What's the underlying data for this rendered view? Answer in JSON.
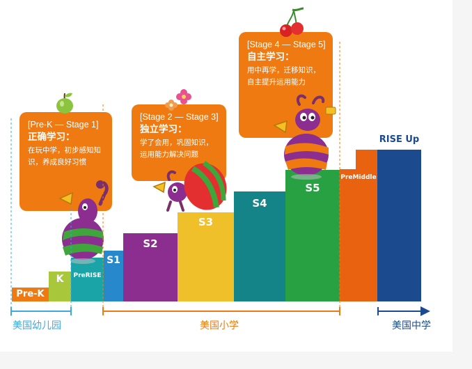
{
  "steps": [
    {
      "label": "Pre-K",
      "color": "#ef7a11"
    },
    {
      "label": "K",
      "color": "#a8c73a"
    },
    {
      "label": "PreRISE",
      "color": "#1aa4a7"
    },
    {
      "label": "S1",
      "color": "#2789cc"
    },
    {
      "label": "S2",
      "color": "#8b2e8f"
    },
    {
      "label": "S3",
      "color": "#f0c02a"
    },
    {
      "label": "S4",
      "color": "#148488"
    },
    {
      "label": "S5",
      "color": "#27a142"
    },
    {
      "label": "PreMiddle",
      "color": "#e8620f"
    },
    {
      "label": "RISE Up",
      "color": "#1c4a8e"
    }
  ],
  "callouts": [
    {
      "range": "[Pre-K — Stage 1]",
      "heading": "正确学习：",
      "body": "在玩中学，初步感知知识，养成良好习惯"
    },
    {
      "range": "[Stage 2 — Stage 3]",
      "heading": "独立学习：",
      "body": "学了会用，巩固知识，运用能力解决问题"
    },
    {
      "range": "[Stage 4 — Stage 5]",
      "heading": "自主学习：",
      "body": "用中再学，迁移知识，自主提升运用能力"
    }
  ],
  "school_levels": [
    {
      "label": "美国幼儿园",
      "color": "#3fa9dd"
    },
    {
      "label": "美国小学",
      "color": "#ef7a11"
    },
    {
      "label": "美国中学",
      "color": "#1c4a8e"
    }
  ],
  "decorations": [
    "apple-icon",
    "flower-icon",
    "cherry-icon",
    "bug-mascot-icon"
  ]
}
